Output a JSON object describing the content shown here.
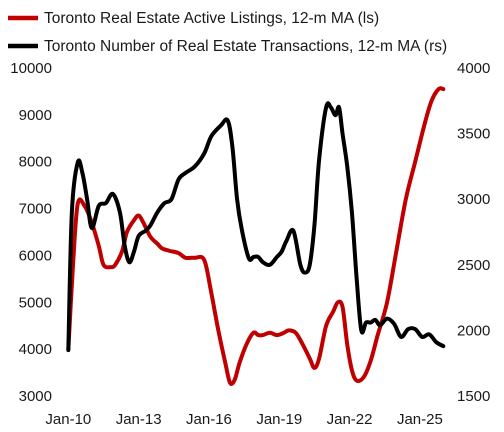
{
  "chart_data": {
    "type": "line",
    "title": "",
    "xlabel": "",
    "ylabel_left": "",
    "ylabel_right": "",
    "x_ticks": [
      "Jan-10",
      "Jan-13",
      "Jan-16",
      "Jan-19",
      "Jan-22",
      "Jan-25"
    ],
    "x_range": [
      2009.9,
      2026.2
    ],
    "y_left": {
      "range": [
        3000,
        10000
      ],
      "ticks": [
        3000,
        4000,
        5000,
        6000,
        7000,
        8000,
        9000,
        10000
      ]
    },
    "y_right": {
      "range": [
        1500,
        4000
      ],
      "ticks": [
        1500,
        2000,
        2500,
        3000,
        3500,
        4000
      ]
    },
    "grid": false,
    "legend_position": "top-left",
    "series": [
      {
        "name": "Toronto Real Estate Active Listings, 12-m MA (ls)",
        "axis": "left",
        "color": "#c00000",
        "x": [
          2010.0,
          2010.2,
          2010.4,
          2010.7,
          2011.0,
          2011.3,
          2011.5,
          2011.8,
          2012.0,
          2012.3,
          2012.5,
          2012.8,
          2013.0,
          2013.2,
          2013.5,
          2013.8,
          2014.0,
          2014.3,
          2014.7,
          2015.0,
          2015.4,
          2015.8,
          2016.1,
          2016.4,
          2016.7,
          2016.9,
          2017.1,
          2017.3,
          2017.6,
          2017.9,
          2018.1,
          2018.3,
          2018.6,
          2018.9,
          2019.2,
          2019.4,
          2019.7,
          2020.0,
          2020.3,
          2020.5,
          2020.7,
          2021.0,
          2021.3,
          2021.5,
          2021.7,
          2021.9,
          2022.1,
          2022.3,
          2022.6,
          2022.9,
          2023.2,
          2023.6,
          2024.0,
          2024.4,
          2024.8,
          2025.2,
          2025.5,
          2025.8,
          2026.0
        ],
        "y": [
          4000,
          5800,
          7100,
          7050,
          6700,
          6200,
          5800,
          5750,
          5800,
          6100,
          6500,
          6750,
          6850,
          6700,
          6400,
          6250,
          6150,
          6100,
          6050,
          5950,
          5950,
          5900,
          5200,
          4400,
          3700,
          3280,
          3350,
          3700,
          4100,
          4350,
          4300,
          4300,
          4350,
          4300,
          4350,
          4400,
          4350,
          4100,
          3800,
          3600,
          3800,
          4500,
          4800,
          5000,
          4900,
          4100,
          3550,
          3330,
          3400,
          3750,
          4300,
          5000,
          6100,
          7200,
          8000,
          8800,
          9300,
          9550,
          9550
        ]
      },
      {
        "name": "Toronto Number of Real Estate Transactions, 12-m MA (rs)",
        "axis": "right",
        "color": "#000000",
        "x": [
          2010.0,
          2010.15,
          2010.4,
          2010.6,
          2010.8,
          2011.0,
          2011.3,
          2011.6,
          2011.9,
          2012.2,
          2012.4,
          2012.6,
          2012.8,
          2013.0,
          2013.3,
          2013.5,
          2013.8,
          2014.1,
          2014.4,
          2014.7,
          2015.0,
          2015.4,
          2015.8,
          2016.1,
          2016.5,
          2016.8,
          2017.0,
          2017.2,
          2017.4,
          2017.7,
          2017.9,
          2018.1,
          2018.3,
          2018.6,
          2018.9,
          2019.1,
          2019.3,
          2019.6,
          2019.9,
          2020.1,
          2020.3,
          2020.5,
          2020.7,
          2021.0,
          2021.2,
          2021.4,
          2021.55,
          2021.7,
          2021.9,
          2022.1,
          2022.3,
          2022.5,
          2022.7,
          2022.9,
          2023.1,
          2023.3,
          2023.6,
          2023.9,
          2024.2,
          2024.5,
          2024.8,
          2025.1,
          2025.4,
          2025.7,
          2026.0
        ],
        "y": [
          1850,
          2900,
          3280,
          3200,
          3000,
          2780,
          2950,
          2970,
          3040,
          2900,
          2650,
          2520,
          2600,
          2720,
          2760,
          2800,
          2900,
          2970,
          3000,
          3150,
          3200,
          3250,
          3350,
          3480,
          3560,
          3600,
          3400,
          3000,
          2770,
          2550,
          2560,
          2560,
          2520,
          2500,
          2560,
          2600,
          2680,
          2760,
          2500,
          2440,
          2500,
          2800,
          3300,
          3700,
          3700,
          3640,
          3700,
          3500,
          3250,
          2900,
          2400,
          2000,
          2060,
          2060,
          2080,
          2040,
          2090,
          2050,
          1950,
          2010,
          2010,
          1950,
          1970,
          1910,
          1880
        ]
      }
    ]
  }
}
